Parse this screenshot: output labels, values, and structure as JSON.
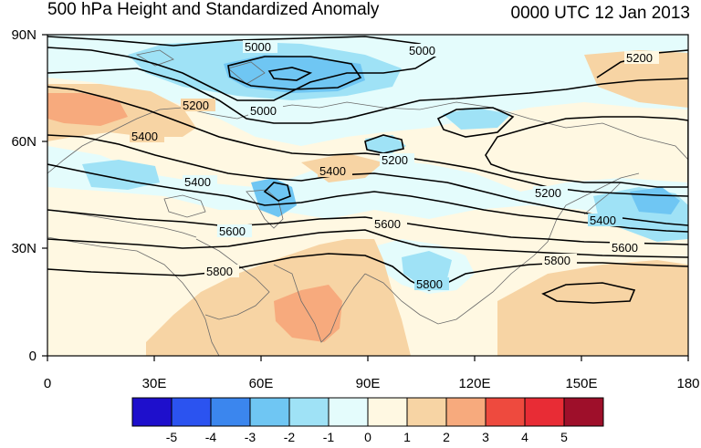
{
  "title": "500 hPa Height and Standardized Anomaly",
  "time_label": "0000 UTC 12 Jan 2013",
  "map": {
    "lon_range": [
      0,
      180
    ],
    "lat_range": [
      0,
      90
    ],
    "x_ticks": [
      "0",
      "30E",
      "60E",
      "90E",
      "120E",
      "150E",
      "180"
    ],
    "y_ticks": [
      "0",
      "30N",
      "60N",
      "90N"
    ],
    "contour_labels": [
      "5000",
      "5000",
      "5000",
      "5200",
      "5200",
      "5200",
      "5200",
      "5400",
      "5400",
      "5400",
      "5400",
      "5600",
      "5600",
      "5600",
      "5800",
      "5800",
      "5800"
    ]
  },
  "colorbar": {
    "labels": [
      "-5",
      "-4",
      "-3",
      "-2",
      "-1",
      "0",
      "1",
      "2",
      "3",
      "4",
      "5"
    ],
    "colors": [
      "#1e0fcc",
      "#2b53f0",
      "#3b86ee",
      "#6fc6f3",
      "#9fe2f6",
      "#e4fcfc",
      "#fff8e2",
      "#f7d4a4",
      "#f7aa7d",
      "#ee4a3e",
      "#e82c35",
      "#9e0f2a"
    ]
  }
}
